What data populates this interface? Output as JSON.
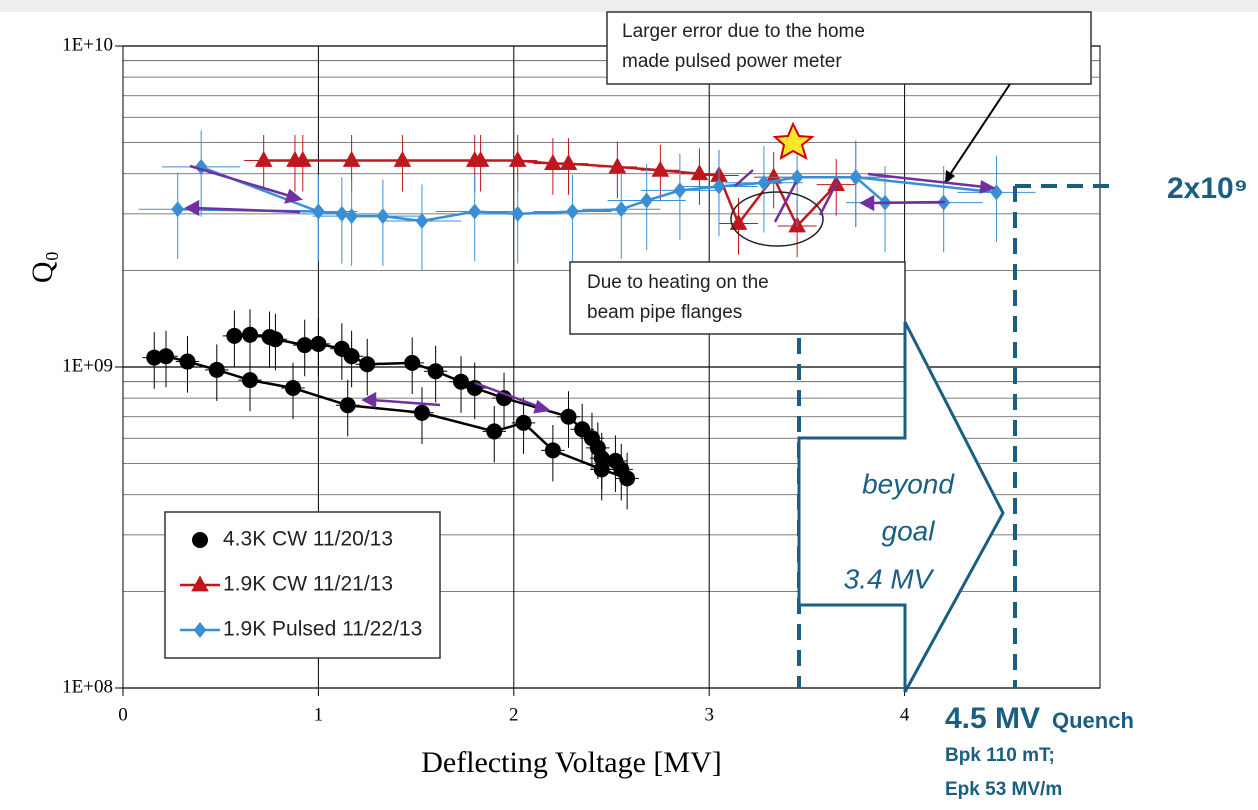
{
  "chart_data": {
    "type": "scatter",
    "xlabel": "Deflecting Voltage [MV]",
    "ylabel": "Q₀",
    "xlim": [
      0,
      5
    ],
    "xticks": [
      0,
      1,
      2,
      3,
      4
    ],
    "ylim": [
      100000000,
      10000000000
    ],
    "log_y": true,
    "yticks": [
      {
        "value": 100000000,
        "label": "1E+08"
      },
      {
        "value": 1000000000,
        "label": "1E+09"
      },
      {
        "value": 10000000000,
        "label": "1E+10"
      }
    ],
    "grid": true,
    "legend": "lower left",
    "series": [
      {
        "name": "4.3K CW 11/20/13",
        "color": "#000000",
        "marker": "circle",
        "y_error": 0.2,
        "x_error": 0.06,
        "x": [
          0.57,
          0.65,
          0.75,
          0.78,
          0.93,
          1.0,
          1.12,
          1.17,
          1.25,
          1.48,
          1.6,
          1.73,
          1.8,
          1.95,
          2.28,
          2.35,
          2.4,
          2.43,
          2.45,
          2.52,
          2.55,
          null,
          0.16,
          0.22,
          0.33,
          0.48,
          0.65,
          0.87,
          1.15,
          1.53,
          1.9,
          2.05,
          2.2,
          2.45,
          2.58
        ],
        "values": [
          1250000000,
          1260000000,
          1240000000,
          1220000000,
          1170000000,
          1180000000,
          1140000000,
          1080000000,
          1020000000,
          1030000000,
          970000000,
          900000000,
          860000000,
          800000000,
          700000000,
          640000000,
          600000000,
          560000000,
          520000000,
          510000000,
          480000000,
          null,
          1070000000,
          1080000000,
          1040000000,
          980000000,
          910000000,
          860000000,
          760000000,
          720000000,
          630000000,
          670000000,
          550000000,
          480000000,
          450000000
        ]
      },
      {
        "name": "1.9K CW 11/21/13",
        "color": "#c0171f",
        "marker": "triangle",
        "y_error": 0.2,
        "x_error": 0.1,
        "x": [
          0.72,
          0.88,
          0.92,
          1.17,
          1.43,
          1.8,
          1.83,
          2.02,
          2.2,
          2.28,
          2.53,
          2.75,
          2.95,
          3.05,
          3.15,
          3.33,
          3.45,
          3.65
        ],
        "values": [
          4400000000,
          4400000000,
          4400000000,
          4400000000,
          4400000000,
          4400000000,
          4400000000,
          4400000000,
          4300000000,
          4300000000,
          4200000000,
          4100000000,
          4000000000,
          3950000000,
          2800000000,
          3900000000,
          2750000000,
          3700000000
        ]
      },
      {
        "name": "1.9K Pulsed 11/22/13",
        "color": "#3a8fd4",
        "marker": "diamond",
        "y_error": 0.3,
        "x_error": 0.2,
        "x": [
          0.4,
          1.0,
          1.12,
          1.17,
          1.33,
          1.53,
          1.8,
          2.02,
          2.3,
          2.55,
          2.68,
          2.85,
          3.05,
          3.28,
          3.45,
          3.75,
          3.9,
          4.2,
          null,
          0.28,
          1.0,
          null,
          3.75,
          4.47
        ],
        "values": [
          4200000000,
          3050000000,
          3000000000,
          2950000000,
          2950000000,
          2850000000,
          3050000000,
          3000000000,
          3050000000,
          3100000000,
          3300000000,
          3550000000,
          3650000000,
          3750000000,
          3900000000,
          3900000000,
          3250000000,
          3250000000,
          null,
          3100000000,
          3050000000,
          null,
          3900000000,
          3500000000
        ]
      }
    ],
    "note_error": [
      "Larger error due to the home",
      "made pulsed power meter"
    ],
    "note_heating": [
      "Due to heating on the",
      "beam pipe flanges"
    ],
    "note_goal": [
      "beyond",
      "goal",
      "3.4 MV"
    ],
    "note_q": "2x10⁹",
    "note_quench": [
      "4.5 MV",
      "Quench",
      "Bpk 110 mT;",
      "Epk 53 MV/m"
    ]
  }
}
